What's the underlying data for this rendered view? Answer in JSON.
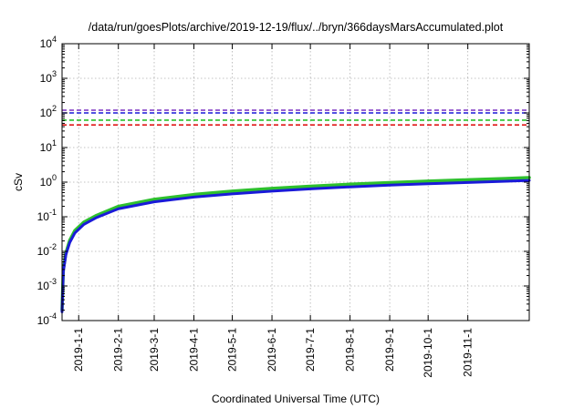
{
  "chart_data": {
    "type": "line",
    "title": "/data/run/goesPlots/archive/2019-12-19/flux/../bryn/366daysMarsAccumulated.plot",
    "xlabel": "Coordinated Universal Time (UTC)",
    "ylabel": "cSv",
    "yscale": "log",
    "ylim": [
      0.0001,
      10000
    ],
    "y_ticks": [
      {
        "value": 0.0001,
        "base": "10",
        "exp": "-4"
      },
      {
        "value": 0.001,
        "base": "10",
        "exp": "-3"
      },
      {
        "value": 0.01,
        "base": "10",
        "exp": "-2"
      },
      {
        "value": 0.1,
        "base": "10",
        "exp": "-1"
      },
      {
        "value": 1,
        "base": "10",
        "exp": "0"
      },
      {
        "value": 10,
        "base": "10",
        "exp": "1"
      },
      {
        "value": 100,
        "base": "10",
        "exp": "2"
      },
      {
        "value": 1000,
        "base": "10",
        "exp": "3"
      },
      {
        "value": 10000,
        "base": "10",
        "exp": "4"
      }
    ],
    "xlim": [
      "2018-12-19",
      "2019-12-19"
    ],
    "x_ticks": [
      "2019-1-1",
      "2019-2-1",
      "2019-3-1",
      "2019-4-1",
      "2019-5-1",
      "2019-6-1",
      "2019-7-1",
      "2019-8-1",
      "2019-9-1",
      "2019-10-1",
      "2019-11-1"
    ],
    "grid": true,
    "legend": "none",
    "reference_lines": [
      {
        "value": 120,
        "color": "#7a2fc0"
      },
      {
        "value": 100,
        "color": "#1a1ad8"
      },
      {
        "value": 62,
        "color": "#28c028"
      },
      {
        "value": 45,
        "color": "#e01818"
      }
    ],
    "series": [
      {
        "color": "#2ec02e",
        "x": [
          "2018-12-19",
          "2018-12-20",
          "2018-12-22",
          "2018-12-25",
          "2018-12-29",
          "2019-01-05",
          "2019-01-15",
          "2019-02-01",
          "2019-03-01",
          "2019-04-01",
          "2019-05-01",
          "2019-06-01",
          "2019-07-01",
          "2019-08-01",
          "2019-09-01",
          "2019-10-01",
          "2019-11-01",
          "2019-12-01",
          "2019-12-19"
        ],
        "values": [
          0.0002,
          0.003,
          0.009,
          0.021,
          0.04,
          0.07,
          0.11,
          0.2,
          0.32,
          0.44,
          0.55,
          0.66,
          0.76,
          0.87,
          0.97,
          1.07,
          1.17,
          1.27,
          1.35
        ]
      },
      {
        "color": "#1a1ad8",
        "x": [
          "2018-12-19",
          "2018-12-20",
          "2018-12-22",
          "2018-12-25",
          "2018-12-29",
          "2019-01-05",
          "2019-01-15",
          "2019-02-01",
          "2019-03-01",
          "2019-04-01",
          "2019-05-01",
          "2019-06-01",
          "2019-07-01",
          "2019-08-01",
          "2019-09-01",
          "2019-10-01",
          "2019-11-01",
          "2019-12-01",
          "2019-12-19"
        ],
        "values": [
          0.00018,
          0.0026,
          0.008,
          0.018,
          0.034,
          0.06,
          0.095,
          0.17,
          0.27,
          0.37,
          0.46,
          0.55,
          0.64,
          0.73,
          0.82,
          0.9,
          0.98,
          1.06,
          1.12
        ]
      }
    ]
  }
}
